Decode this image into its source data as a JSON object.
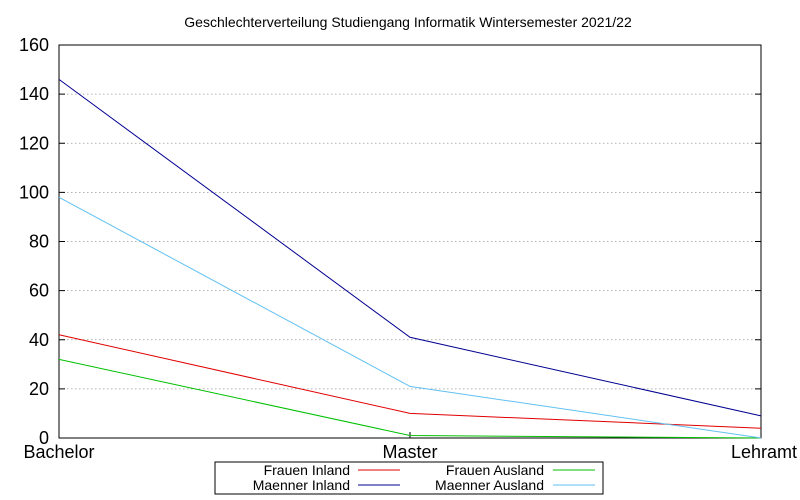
{
  "chart_data": {
    "type": "line",
    "title": "Geschlechterverteilung Studiengang Informatik Wintersemester 2021/22",
    "categories": [
      "Bachelor",
      "Master",
      "Lehramt"
    ],
    "ylim": [
      0,
      160
    ],
    "yticks": [
      0,
      20,
      40,
      60,
      80,
      100,
      120,
      140,
      160
    ],
    "grid": "horizontal",
    "legend_placement": "bottom",
    "series": [
      {
        "name": "Frauen Inland",
        "color": "#e00000",
        "values": [
          42,
          10,
          4
        ]
      },
      {
        "name": "Maenner Inland",
        "color": "#000090",
        "values": [
          146,
          41,
          9
        ]
      },
      {
        "name": "Frauen Ausland",
        "color": "#00c000",
        "values": [
          32,
          1,
          0
        ]
      },
      {
        "name": "Maenner Ausland",
        "color": "#60c0f0",
        "values": [
          98,
          21,
          0
        ]
      }
    ]
  }
}
